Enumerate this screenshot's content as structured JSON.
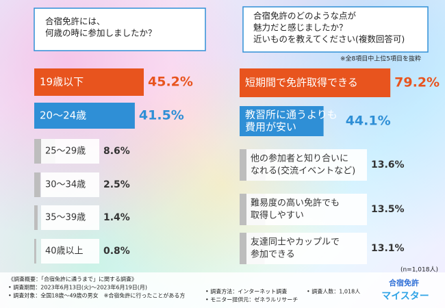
{
  "chart_data": [
    {
      "type": "bar",
      "title_lines": [
        "合宿免許には、",
        "何歳の時に参加しましたか？"
      ],
      "categories": [
        [
          "19歳以下"
        ],
        [
          "20〜24歳"
        ],
        [
          "25〜29歳"
        ],
        [
          "30〜34歳"
        ],
        [
          "35〜39歳"
        ],
        [
          "40歳以上"
        ]
      ],
      "values": [
        45.2,
        41.5,
        8.6,
        2.5,
        1.4,
        0.8
      ],
      "value_labels": [
        "45.2%",
        "41.5%",
        "8.6%",
        "2.5%",
        "1.4%",
        "0.8%"
      ],
      "colors": [
        "#e8541e",
        "#2f8fd6",
        "#bdbdbd",
        "#bdbdbd",
        "#bdbdbd",
        "#bdbdbd"
      ]
    },
    {
      "type": "bar",
      "title_lines": [
        "合宿免許のどのような点が",
        "魅力だと感じましたか？",
        "近いものを教えてください(複数回答可)"
      ],
      "note": "※全8項目中上位5項目を抜粋",
      "categories": [
        [
          "短期間で免許取得できる"
        ],
        [
          "教習所に通うよりも",
          "費用が安い"
        ],
        [
          "他の参加者と知り合いに",
          "なれる(交流イベントなど)"
        ],
        [
          "難易度の高い免許でも",
          "取得しやすい"
        ],
        [
          "友達同士やカップルで",
          "参加できる"
        ]
      ],
      "values": [
        79.2,
        44.1,
        13.6,
        13.5,
        13.1
      ],
      "value_labels": [
        "79.2%",
        "44.1%",
        "13.6%",
        "13.5%",
        "13.1%"
      ],
      "colors": [
        "#e8541e",
        "#2f8fd6",
        "#bdbdbd",
        "#bdbdbd",
        "#bdbdbd"
      ],
      "sample": "(n=1,018人)"
    }
  ],
  "footer": {
    "lines": [
      "《調査概要：「合宿免許に通うまで」に関する調査》",
      "• 調査期間：2023年6月13日(火)〜2023年6月19日(月)",
      "• 調査対象：全国18歳〜49歳の男女　※合宿免許に行ったことがある方",
      "• 調査方法：インターネット調査",
      "• モニター提供元：ゼネラルリサーチ",
      "• 調査人数：1,018人"
    ]
  },
  "logo": {
    "top": "合宿免許",
    "bottom": "マイスター"
  }
}
